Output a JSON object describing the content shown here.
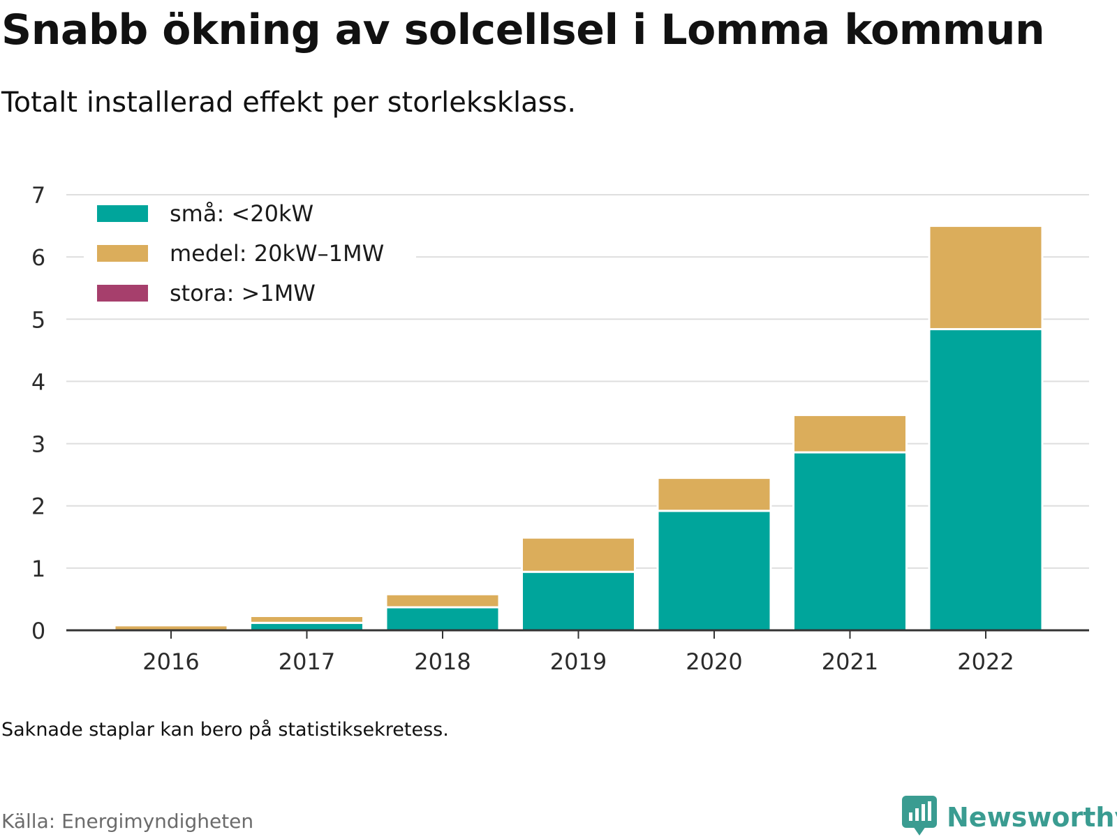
{
  "title": "Snabb ökning av solcellsel i Lomma kommun",
  "subtitle": "Totalt installerad effekt per storleksklass.",
  "note": "Saknade staplar kan bero på statistiksekretess.",
  "source": "Källa: Energimyndigheten",
  "brand": {
    "name": "Newsworthy",
    "icon": "newsworthy-logo-icon",
    "color": "#3a9c91"
  },
  "chart_data": {
    "type": "bar",
    "stacked": true,
    "categories": [
      "2016",
      "2017",
      "2018",
      "2019",
      "2020",
      "2021",
      "2022"
    ],
    "series": [
      {
        "name": "små: <20kW",
        "color": "#00a59b",
        "values": [
          0.0,
          0.12,
          0.37,
          0.94,
          1.92,
          2.86,
          4.84
        ]
      },
      {
        "name": "medel: 20kW–1MW",
        "color": "#dbad5b",
        "values": [
          0.08,
          0.11,
          0.21,
          0.55,
          0.53,
          0.6,
          1.66
        ]
      },
      {
        "name": "stora: >1MW",
        "color": "#a63f6c",
        "values": [
          0,
          0,
          0,
          0,
          0,
          0,
          0
        ]
      }
    ],
    "ylim": [
      0,
      7
    ],
    "yticks": [
      0,
      1,
      2,
      3,
      4,
      5,
      6,
      7
    ],
    "grid": true,
    "legend_position": "top-left",
    "xlabel": "",
    "ylabel": ""
  }
}
